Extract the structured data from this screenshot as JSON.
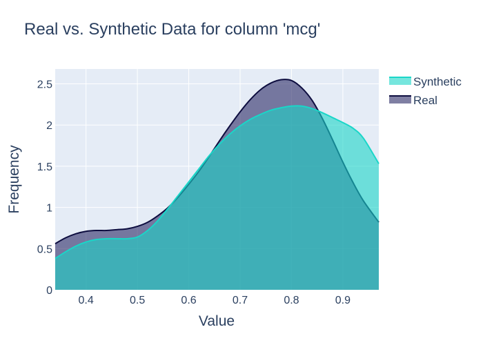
{
  "chart_data": {
    "type": "area",
    "title": "Real vs. Synthetic Data for column 'mcg'",
    "xlabel": "Value",
    "ylabel": "Frequency",
    "xlim": [
      0.34,
      0.97
    ],
    "ylim": [
      0,
      2.68
    ],
    "x_ticks": [
      0.4,
      0.5,
      0.6,
      0.7,
      0.8,
      0.9
    ],
    "x_tick_labels": [
      "0.4",
      "0.5",
      "0.6",
      "0.7",
      "0.8",
      "0.9"
    ],
    "y_ticks": [
      0,
      0.5,
      1,
      1.5,
      2,
      2.5
    ],
    "y_tick_labels": [
      "0",
      "0.5",
      "1",
      "1.5",
      "2",
      "2.5"
    ],
    "grid": true,
    "legend_position": "top-right",
    "series": [
      {
        "name": "Real",
        "line_color": "#0d0d3f",
        "fill_color": "#2a2a66",
        "fill_opacity": 0.6,
        "x": [
          0.34,
          0.36,
          0.38,
          0.4,
          0.42,
          0.44,
          0.46,
          0.48,
          0.5,
          0.52,
          0.54,
          0.56,
          0.58,
          0.6,
          0.62,
          0.64,
          0.66,
          0.68,
          0.7,
          0.72,
          0.74,
          0.76,
          0.78,
          0.8,
          0.82,
          0.84,
          0.86,
          0.88,
          0.9,
          0.92,
          0.94,
          0.97
        ],
        "y": [
          0.56,
          0.63,
          0.68,
          0.71,
          0.72,
          0.72,
          0.73,
          0.74,
          0.77,
          0.82,
          0.9,
          1.0,
          1.13,
          1.28,
          1.44,
          1.62,
          1.81,
          1.99,
          2.16,
          2.31,
          2.43,
          2.51,
          2.55,
          2.54,
          2.45,
          2.3,
          2.08,
          1.82,
          1.55,
          1.3,
          1.08,
          0.82
        ]
      },
      {
        "name": "Synthetic",
        "line_color": "#1ad6c8",
        "fill_color": "#1ad6c8",
        "fill_opacity": 0.6,
        "x": [
          0.34,
          0.36,
          0.38,
          0.4,
          0.42,
          0.44,
          0.46,
          0.48,
          0.5,
          0.52,
          0.54,
          0.56,
          0.58,
          0.6,
          0.62,
          0.64,
          0.66,
          0.68,
          0.7,
          0.72,
          0.74,
          0.76,
          0.78,
          0.8,
          0.82,
          0.84,
          0.86,
          0.88,
          0.9,
          0.92,
          0.94,
          0.97
        ],
        "y": [
          0.38,
          0.46,
          0.53,
          0.58,
          0.61,
          0.62,
          0.62,
          0.62,
          0.64,
          0.72,
          0.84,
          0.99,
          1.15,
          1.31,
          1.47,
          1.63,
          1.77,
          1.89,
          1.99,
          2.07,
          2.13,
          2.18,
          2.21,
          2.23,
          2.23,
          2.2,
          2.15,
          2.09,
          2.03,
          1.96,
          1.84,
          1.53
        ]
      }
    ],
    "legend_order": [
      "Synthetic",
      "Real"
    ]
  }
}
